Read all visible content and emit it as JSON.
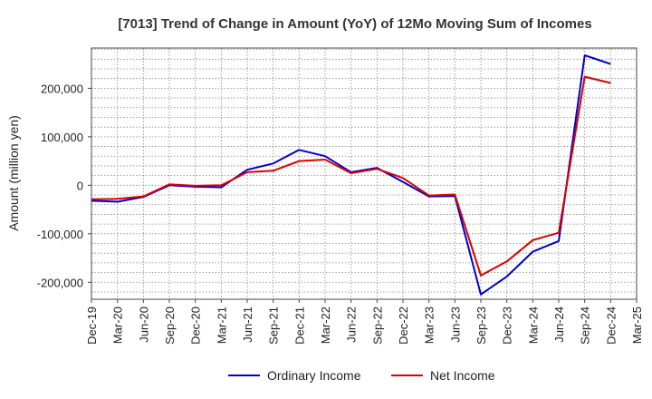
{
  "chart_data": {
    "type": "line",
    "title": "[7013]  Trend of Change in Amount (YoY) of 12Mo Moving Sum of Incomes",
    "ylabel": "Amount (million yen)",
    "xlabel": "",
    "ylim": [
      -235000,
      283000
    ],
    "yticks": [
      -200000,
      -100000,
      0,
      100000,
      200000
    ],
    "ytick_labels": [
      "-200,000",
      "-100,000",
      "0",
      "100,000",
      "200,000"
    ],
    "xtick_labels": [
      "Dec-19",
      "Mar-20",
      "Jun-20",
      "Sep-20",
      "Dec-20",
      "Mar-21",
      "Jun-21",
      "Sep-21",
      "Dec-21",
      "Mar-22",
      "Jun-22",
      "Sep-22",
      "Dec-22",
      "Mar-23",
      "Jun-23",
      "Sep-23",
      "Dec-23",
      "Mar-24",
      "Jun-24",
      "Sep-24",
      "Dec-24",
      "Mar-25"
    ],
    "x": [
      "Dec-19",
      "Mar-20",
      "Jun-20",
      "Sep-20",
      "Dec-20",
      "Mar-21",
      "Jun-21",
      "Sep-21",
      "Dec-21",
      "Mar-22",
      "Jun-22",
      "Sep-22",
      "Dec-22",
      "Mar-23",
      "Jun-23",
      "Sep-23",
      "Dec-23",
      "Mar-24",
      "Jun-24",
      "Sep-24",
      "Dec-24"
    ],
    "grid": true,
    "legend_position": "bottom",
    "series": [
      {
        "name": "Ordinary Income",
        "color": "#0000cc",
        "values": [
          -32000,
          -34000,
          -24000,
          0,
          -3000,
          -4000,
          32000,
          45000,
          73000,
          60000,
          27000,
          36000,
          7000,
          -23000,
          -22000,
          -225000,
          -188000,
          -137000,
          -115000,
          268000,
          250000
        ]
      },
      {
        "name": "Net Income",
        "color": "#dd0000",
        "values": [
          -29000,
          -28000,
          -23000,
          2000,
          -1000,
          0,
          27000,
          30000,
          50000,
          53000,
          25000,
          34000,
          15000,
          -21000,
          -19000,
          -186000,
          -157000,
          -113000,
          -98000,
          224000,
          211000
        ]
      }
    ]
  }
}
